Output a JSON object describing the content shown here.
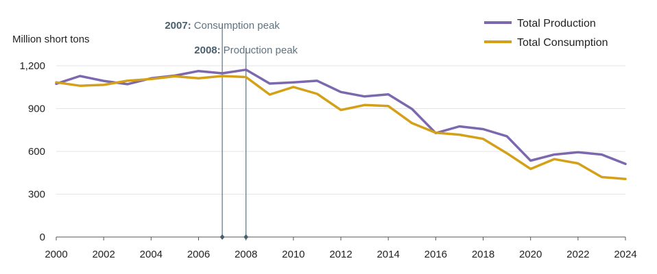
{
  "chart_data": {
    "type": "line",
    "ylabel": "Million short tons",
    "x": [
      2000,
      2001,
      2002,
      2003,
      2004,
      2005,
      2006,
      2007,
      2008,
      2009,
      2010,
      2011,
      2012,
      2013,
      2014,
      2015,
      2016,
      2017,
      2018,
      2019,
      2020,
      2021,
      2022,
      2023,
      2024
    ],
    "x_ticks": [
      "2000",
      "2002",
      "2004",
      "2006",
      "2008",
      "2010",
      "2012",
      "2014",
      "2016",
      "2018",
      "2020",
      "2022",
      "2024"
    ],
    "y_ticks": [
      "0",
      "300",
      "600",
      "900",
      "1,200"
    ],
    "xlim": [
      2000,
      2024
    ],
    "ylim": [
      0,
      1200
    ],
    "grid": "horizontal",
    "legend_position": "top-right",
    "series": [
      {
        "name": "Total Production",
        "color": "#7b68ae",
        "values": [
          1074,
          1128,
          1094,
          1071,
          1112,
          1131,
          1163,
          1147,
          1172,
          1075,
          1084,
          1095,
          1016,
          985,
          1000,
          897,
          728,
          775,
          756,
          706,
          535,
          578,
          594,
          578,
          512
        ]
      },
      {
        "name": "Total Consumption",
        "color": "#d4a017",
        "values": [
          1084,
          1060,
          1066,
          1095,
          1107,
          1126,
          1112,
          1128,
          1121,
          998,
          1051,
          1003,
          890,
          925,
          918,
          798,
          731,
          717,
          688,
          587,
          477,
          546,
          516,
          420,
          407
        ]
      }
    ],
    "annotations": [
      {
        "year": "2007:",
        "text": "Consumption peak",
        "x": 2007
      },
      {
        "year": "2008:",
        "text": "Production peak",
        "x": 2008
      }
    ],
    "annotation_color": "#5e7281"
  }
}
